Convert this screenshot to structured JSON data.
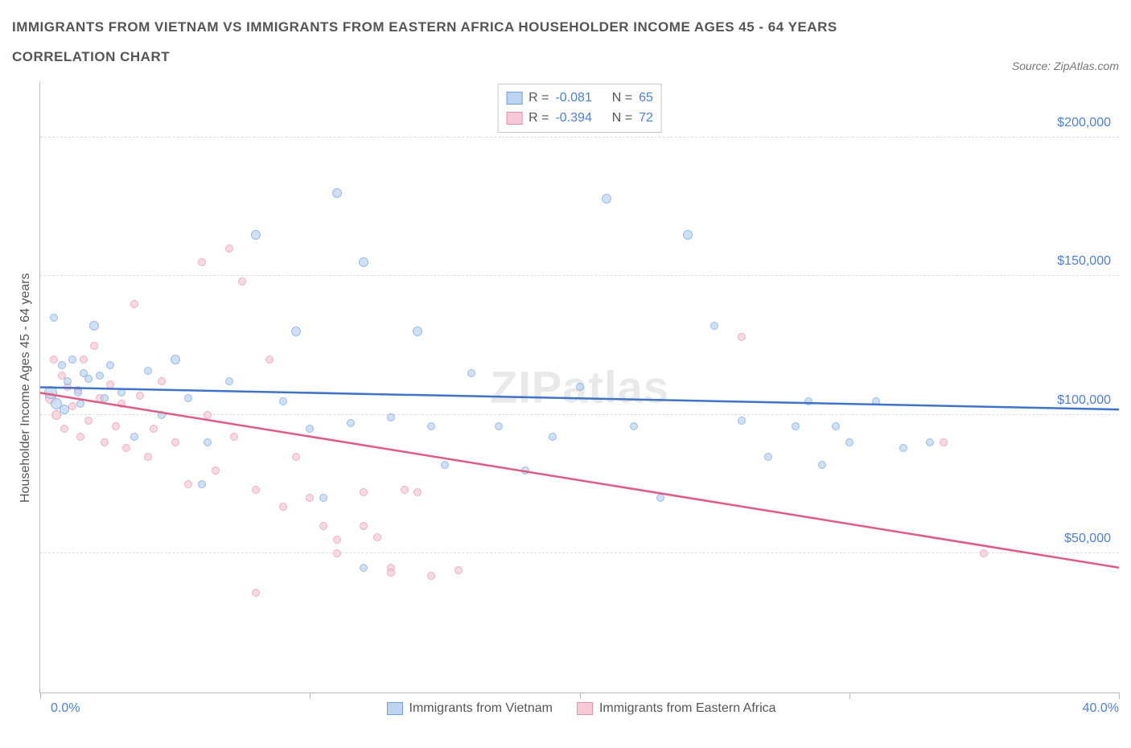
{
  "title_line1": "IMMIGRANTS FROM VIETNAM VS IMMIGRANTS FROM EASTERN AFRICA HOUSEHOLDER INCOME AGES 45 - 64 YEARS",
  "title_line2": "CORRELATION CHART",
  "source_prefix": "Source: ",
  "source_name": "ZipAtlas.com",
  "y_axis_label": "Householder Income Ages 45 - 64 years",
  "watermark": "ZIPatlas",
  "chart": {
    "type": "scatter",
    "xlim": [
      0,
      40
    ],
    "ylim": [
      0,
      220000
    ],
    "y_gridlines": [
      50000,
      100000,
      150000,
      200000
    ],
    "y_tick_labels": [
      "$50,000",
      "$100,000",
      "$150,000",
      "$200,000"
    ],
    "x_ticks": [
      0,
      10,
      20,
      30,
      40
    ],
    "x_tick_labels": {
      "min": "0.0%",
      "max": "40.0%"
    },
    "grid_color": "#dddddd",
    "axis_color": "#bbbbbb",
    "tick_label_color": "#4a7fe0",
    "background_color": "#ffffff"
  },
  "series": {
    "blue": {
      "label": "Immigrants from Vietnam",
      "fill": "#bcd3f2",
      "stroke": "#6f9fe0",
      "line_color": "#3f72c9",
      "opacity": 0.7,
      "R_label": "R = ",
      "R_value": "-0.081",
      "N_label": "N = ",
      "N_value": "65",
      "trend": {
        "x1": 0,
        "y1": 110000,
        "x2": 40,
        "y2": 102000
      },
      "points": [
        [
          0.4,
          108000,
          16
        ],
        [
          0.5,
          135000,
          10
        ],
        [
          0.6,
          104000,
          14
        ],
        [
          0.8,
          118000,
          10
        ],
        [
          0.9,
          102000,
          12
        ],
        [
          1.0,
          112000,
          10
        ],
        [
          1.2,
          120000,
          10
        ],
        [
          1.4,
          108000,
          10
        ],
        [
          1.5,
          104000,
          10
        ],
        [
          1.6,
          115000,
          10
        ],
        [
          1.8,
          113000,
          10
        ],
        [
          2.0,
          132000,
          12
        ],
        [
          2.2,
          114000,
          10
        ],
        [
          2.4,
          106000,
          10
        ],
        [
          2.6,
          118000,
          10
        ],
        [
          3.0,
          108000,
          10
        ],
        [
          3.5,
          92000,
          10
        ],
        [
          4.0,
          116000,
          10
        ],
        [
          4.5,
          100000,
          10
        ],
        [
          5.0,
          120000,
          12
        ],
        [
          5.5,
          106000,
          10
        ],
        [
          6.0,
          75000,
          10
        ],
        [
          6.2,
          90000,
          10
        ],
        [
          7.0,
          112000,
          10
        ],
        [
          8.0,
          165000,
          12
        ],
        [
          9.0,
          105000,
          10
        ],
        [
          9.5,
          130000,
          12
        ],
        [
          10.0,
          95000,
          10
        ],
        [
          10.5,
          70000,
          10
        ],
        [
          11.0,
          180000,
          12
        ],
        [
          11.5,
          97000,
          10
        ],
        [
          12.0,
          155000,
          12
        ],
        [
          12.0,
          45000,
          10
        ],
        [
          13.0,
          99000,
          10
        ],
        [
          14.0,
          130000,
          12
        ],
        [
          14.5,
          96000,
          10
        ],
        [
          15.0,
          82000,
          10
        ],
        [
          16.0,
          115000,
          10
        ],
        [
          17.0,
          96000,
          10
        ],
        [
          18.0,
          80000,
          10
        ],
        [
          19.0,
          92000,
          10
        ],
        [
          20.0,
          110000,
          10
        ],
        [
          21.0,
          178000,
          12
        ],
        [
          22.0,
          96000,
          10
        ],
        [
          23.0,
          70000,
          10
        ],
        [
          24.0,
          165000,
          12
        ],
        [
          25.0,
          132000,
          10
        ],
        [
          26.0,
          98000,
          10
        ],
        [
          27.0,
          85000,
          10
        ],
        [
          28.0,
          96000,
          10
        ],
        [
          28.5,
          105000,
          10
        ],
        [
          29.0,
          82000,
          10
        ],
        [
          29.5,
          96000,
          10
        ],
        [
          30.0,
          90000,
          10
        ],
        [
          31.0,
          105000,
          10
        ],
        [
          32.0,
          88000,
          10
        ],
        [
          33.0,
          90000,
          10
        ]
      ]
    },
    "pink": {
      "label": "Immigrants from Eastern Africa",
      "fill": "#f6c9d6",
      "stroke": "#e88fa8",
      "line_color": "#e05a86",
      "opacity": 0.7,
      "R_label": "R = ",
      "R_value": "-0.394",
      "N_label": "N = ",
      "N_value": "72",
      "trend": {
        "x1": 0,
        "y1": 108000,
        "x2": 40,
        "y2": 45000
      },
      "points": [
        [
          0.4,
          106000,
          14
        ],
        [
          0.5,
          120000,
          10
        ],
        [
          0.6,
          100000,
          12
        ],
        [
          0.8,
          114000,
          10
        ],
        [
          0.9,
          95000,
          10
        ],
        [
          1.0,
          110000,
          10
        ],
        [
          1.2,
          103000,
          10
        ],
        [
          1.4,
          109000,
          10
        ],
        [
          1.5,
          92000,
          10
        ],
        [
          1.6,
          120000,
          10
        ],
        [
          1.8,
          98000,
          10
        ],
        [
          2.0,
          125000,
          10
        ],
        [
          2.2,
          106000,
          10
        ],
        [
          2.4,
          90000,
          10
        ],
        [
          2.6,
          111000,
          10
        ],
        [
          2.8,
          96000,
          10
        ],
        [
          3.0,
          104000,
          10
        ],
        [
          3.2,
          88000,
          10
        ],
        [
          3.5,
          140000,
          10
        ],
        [
          3.7,
          107000,
          10
        ],
        [
          4.0,
          85000,
          10
        ],
        [
          4.2,
          95000,
          10
        ],
        [
          4.5,
          112000,
          10
        ],
        [
          5.0,
          90000,
          10
        ],
        [
          5.5,
          75000,
          10
        ],
        [
          6.0,
          155000,
          10
        ],
        [
          6.2,
          100000,
          10
        ],
        [
          6.5,
          80000,
          10
        ],
        [
          7.0,
          160000,
          10
        ],
        [
          7.2,
          92000,
          10
        ],
        [
          7.5,
          148000,
          10
        ],
        [
          8.0,
          73000,
          10
        ],
        [
          8.0,
          36000,
          10
        ],
        [
          8.5,
          120000,
          10
        ],
        [
          9.0,
          67000,
          10
        ],
        [
          9.5,
          85000,
          10
        ],
        [
          10.0,
          70000,
          10
        ],
        [
          10.5,
          60000,
          10
        ],
        [
          11.0,
          55000,
          10
        ],
        [
          11.0,
          50000,
          10
        ],
        [
          12.0,
          72000,
          10
        ],
        [
          12.0,
          60000,
          10
        ],
        [
          12.5,
          56000,
          10
        ],
        [
          13.0,
          45000,
          10
        ],
        [
          13.0,
          43000,
          10
        ],
        [
          13.5,
          73000,
          10
        ],
        [
          14.0,
          72000,
          10
        ],
        [
          14.5,
          42000,
          10
        ],
        [
          15.5,
          44000,
          10
        ],
        [
          26.0,
          128000,
          10
        ],
        [
          33.5,
          90000,
          10
        ],
        [
          35.0,
          50000,
          10
        ]
      ]
    }
  }
}
